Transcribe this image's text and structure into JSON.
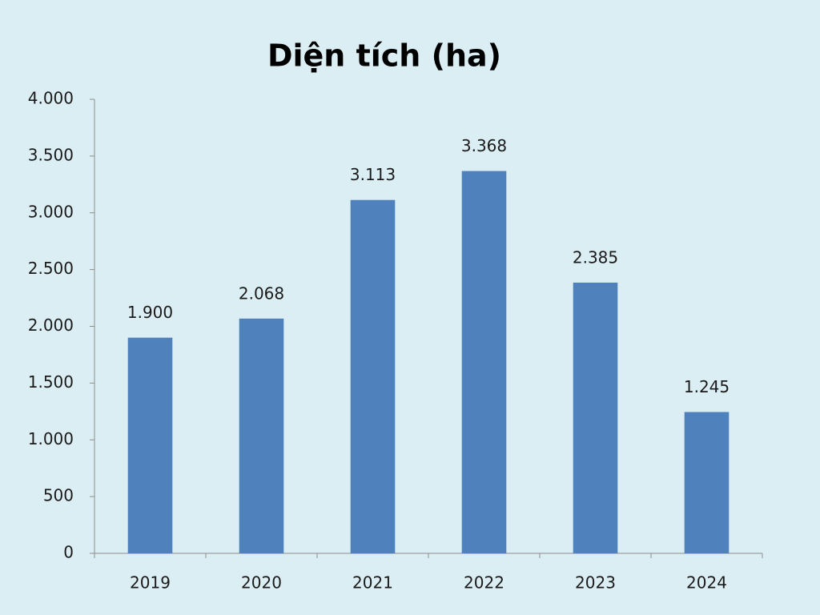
{
  "chart_data": {
    "type": "bar",
    "title": "Diện tích (ha)",
    "categories": [
      "2019",
      "2020",
      "2021",
      "2022",
      "2023",
      "2024"
    ],
    "values": [
      1900,
      2068,
      3113,
      3368,
      2385,
      1245
    ],
    "value_labels": [
      "1.900",
      "2.068",
      "3.113",
      "3.368",
      "2.385",
      "1.245"
    ],
    "color": "#4f81bd",
    "ylim": [
      0,
      4000
    ],
    "yticks": [
      0,
      500,
      {
        "value": 1000,
        "label": "1.000"
      },
      {
        "value": 1500,
        "label": "1.500"
      },
      {
        "value": 2000,
        "label": "2.000"
      },
      {
        "value": 2500,
        "label": "2.500"
      },
      {
        "value": 3000,
        "label": "3.000"
      },
      {
        "value": 3500,
        "label": "3.500"
      },
      {
        "value": 4000,
        "label": "4.000"
      }
    ],
    "grid": false
  }
}
